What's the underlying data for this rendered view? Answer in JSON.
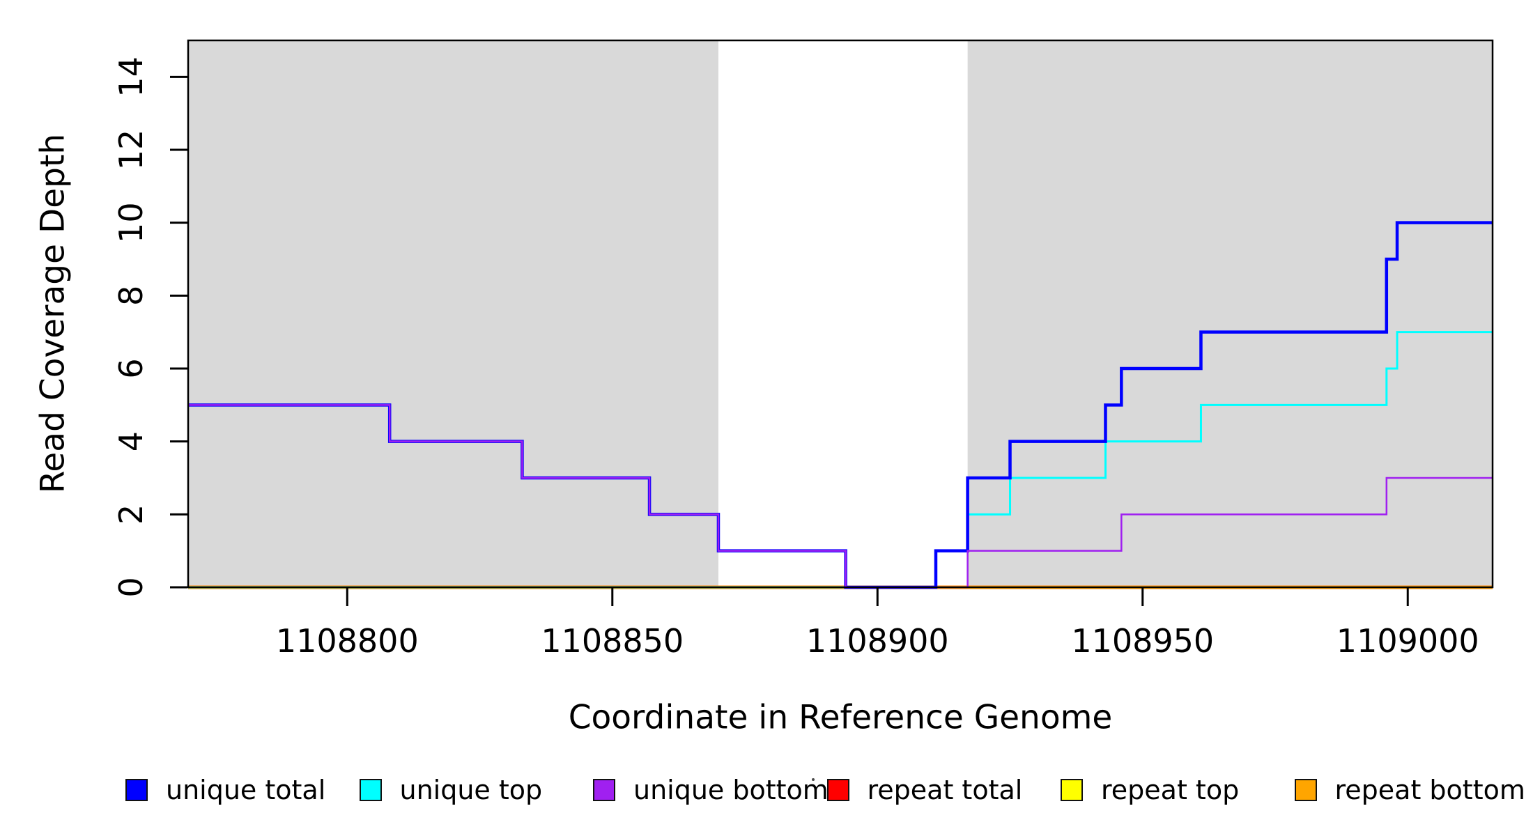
{
  "chart_data": {
    "type": "line",
    "subtype": "step",
    "title": "",
    "xlabel": "Coordinate in Reference Genome",
    "ylabel": "Read Coverage Depth",
    "xlim": [
      1108770,
      1109016
    ],
    "ylim": [
      0,
      15
    ],
    "x_ticks": [
      1108800,
      1108850,
      1108900,
      1108950,
      1109000
    ],
    "y_ticks": [
      0,
      2,
      4,
      6,
      8,
      10,
      12,
      14
    ],
    "grid": false,
    "legend_position": "bottom",
    "background_color": "#ffffff",
    "shaded_region_color": "#d9d9d9",
    "shaded_regions": [
      {
        "name": "left-repeat-region",
        "x0": 1108770,
        "x1": 1108870
      },
      {
        "name": "right-repeat-region",
        "x0": 1108917,
        "x1": 1109016
      }
    ],
    "series": [
      {
        "name": "repeat total",
        "color": "#ff0000",
        "width": 5,
        "steps": [
          [
            1108770,
            0
          ]
        ]
      },
      {
        "name": "repeat top",
        "color": "#ffff00",
        "width": 4.5,
        "steps": [
          [
            1108770,
            0
          ]
        ]
      },
      {
        "name": "repeat bottom",
        "color": "#ffa500",
        "width": 4,
        "steps": [
          [
            1108770,
            0
          ]
        ]
      },
      {
        "name": "unique top",
        "color": "#00ffff",
        "width": 3,
        "steps": [
          [
            1108770,
            0
          ],
          [
            1108911,
            1
          ],
          [
            1108917,
            2
          ],
          [
            1108925,
            3
          ],
          [
            1108943,
            4
          ],
          [
            1108961,
            5
          ],
          [
            1108996,
            6
          ],
          [
            1108998,
            7
          ]
        ]
      },
      {
        "name": "unique total",
        "color": "#0000ff",
        "width": 4.5,
        "steps": [
          [
            1108770,
            5
          ],
          [
            1108808,
            4
          ],
          [
            1108833,
            3
          ],
          [
            1108857,
            2
          ],
          [
            1108870,
            1
          ],
          [
            1108894,
            0
          ],
          [
            1108911,
            1
          ],
          [
            1108917,
            3
          ],
          [
            1108925,
            4
          ],
          [
            1108943,
            5
          ],
          [
            1108946,
            6
          ],
          [
            1108961,
            7
          ],
          [
            1108996,
            9
          ],
          [
            1108998,
            10
          ]
        ]
      },
      {
        "name": "unique bottom",
        "color": "#a020f0",
        "width": 2.5,
        "steps": [
          [
            1108770,
            5
          ],
          [
            1108808,
            4
          ],
          [
            1108833,
            3
          ],
          [
            1108857,
            2
          ],
          [
            1108870,
            1
          ],
          [
            1108894,
            0
          ],
          [
            1108917,
            1
          ],
          [
            1108946,
            2
          ],
          [
            1108996,
            3
          ]
        ]
      }
    ],
    "legend": [
      {
        "label": "unique total",
        "color": "#0000ff"
      },
      {
        "label": "unique top",
        "color": "#00ffff"
      },
      {
        "label": "unique bottom",
        "color": "#a020f0"
      },
      {
        "label": "repeat total",
        "color": "#ff0000"
      },
      {
        "label": "repeat top",
        "color": "#ffff00"
      },
      {
        "label": "repeat bottom",
        "color": "#ffa500"
      }
    ]
  }
}
